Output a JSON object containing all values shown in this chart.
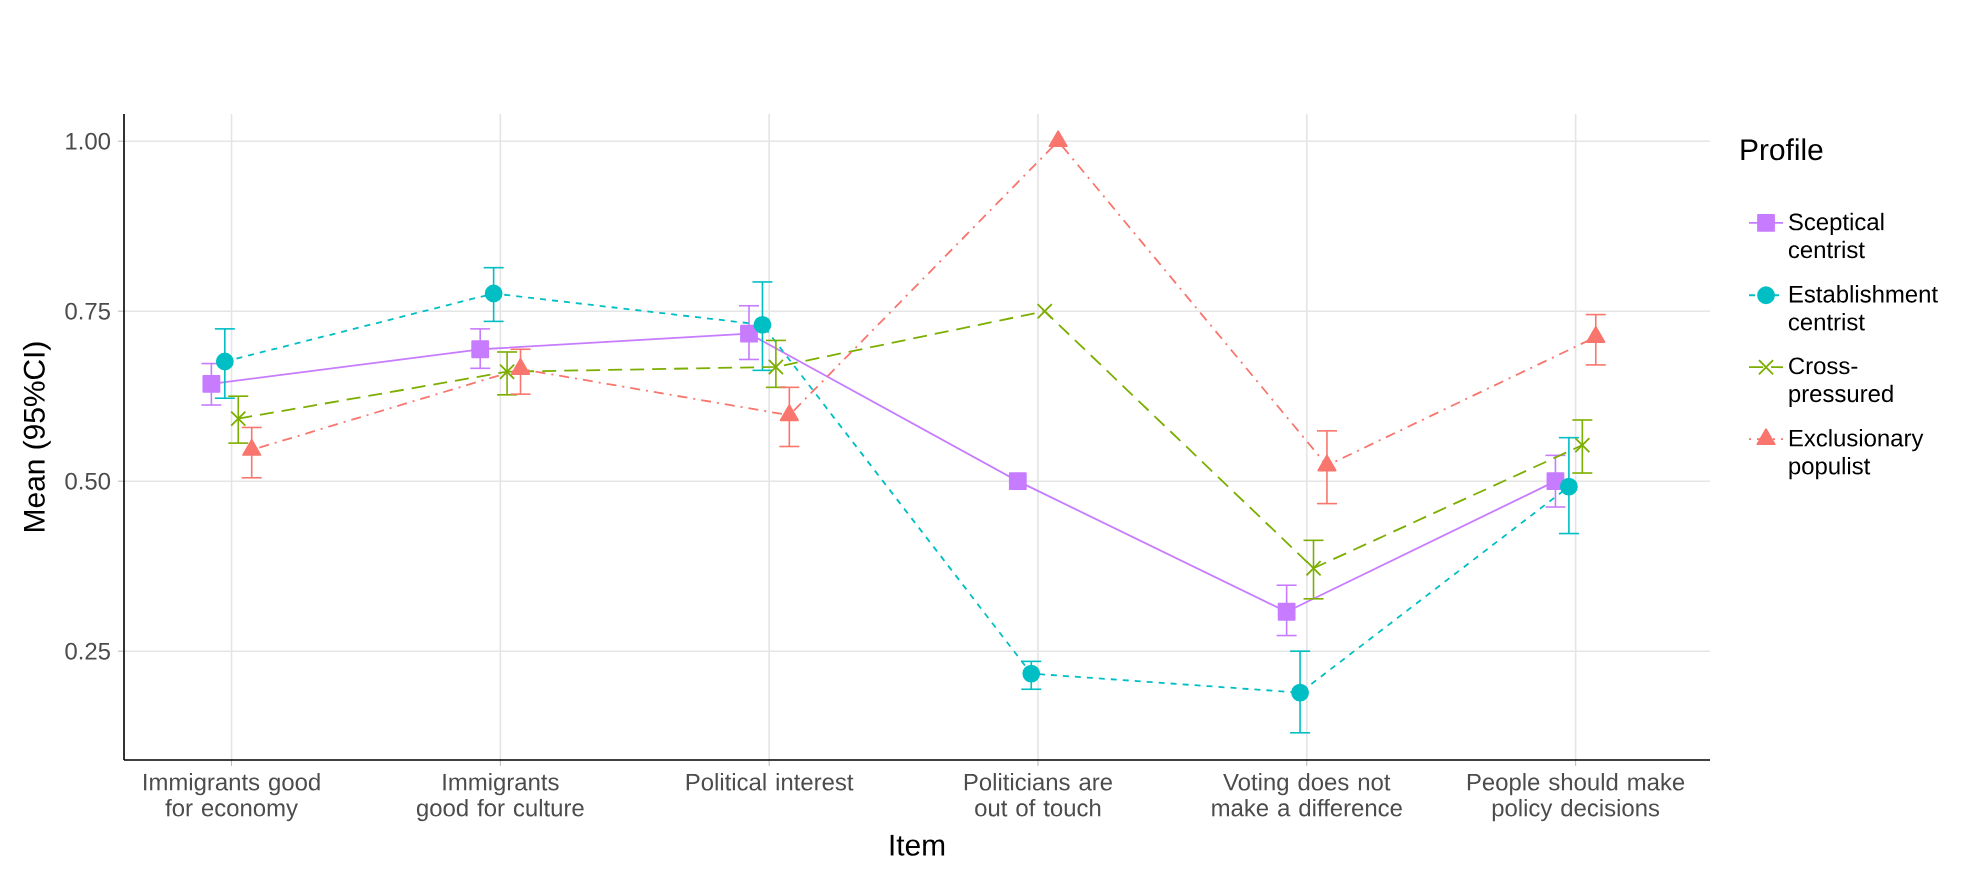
{
  "chart_data": {
    "type": "line",
    "xlabel": "Item",
    "ylabel": "Mean (95%CI)",
    "legend_title": "Profile",
    "legend": "right",
    "grid": true,
    "categories": [
      "Immigrants good for economy",
      "Immigrants good for culture",
      "Political interest",
      "Politicians are out of touch",
      "Voting does not make a difference",
      "People should make policy decisions"
    ],
    "ylim": [
      0.09,
      1.04
    ],
    "yticks": [
      {
        "value": 0.25,
        "label": "0.25"
      },
      {
        "value": 0.5,
        "label": "0.50"
      },
      {
        "value": 0.75,
        "label": "0.75"
      },
      {
        "value": 1.0,
        "label": "1.00"
      }
    ],
    "series": [
      {
        "name": "Sceptical centrist",
        "color": "#c77cff",
        "marker": "square",
        "line_style": "solid",
        "values": [
          0.643,
          0.694,
          0.717,
          0.5,
          0.308,
          0.5
        ],
        "errors": [
          [
            0.612,
            0.673
          ],
          [
            0.666,
            0.724
          ],
          [
            0.679,
            0.758
          ],
          null,
          [
            0.273,
            0.347
          ],
          [
            0.462,
            0.538
          ]
        ]
      },
      {
        "name": "Establishment centrist",
        "color": "#00bfc4",
        "marker": "circle",
        "line_style": "dashed",
        "values": [
          0.676,
          0.776,
          0.73,
          0.217,
          0.189,
          0.492
        ],
        "errors": [
          [
            0.622,
            0.724
          ],
          [
            0.735,
            0.814
          ],
          [
            0.663,
            0.793
          ],
          [
            0.194,
            0.235
          ],
          [
            0.13,
            0.25
          ],
          [
            0.423,
            0.564
          ]
        ]
      },
      {
        "name": "Cross-pressured",
        "color": "#7cae00",
        "marker": "cross",
        "line_style": "longdash",
        "values": [
          0.592,
          0.661,
          0.668,
          0.75,
          0.372,
          0.553
        ],
        "errors": [
          [
            0.556,
            0.625
          ],
          [
            0.627,
            0.69
          ],
          [
            0.638,
            0.707
          ],
          null,
          [
            0.327,
            0.413
          ],
          [
            0.512,
            0.59
          ]
        ]
      },
      {
        "name": "Exclusionary populist",
        "color": "#f8766d",
        "marker": "triangle",
        "line_style": "dotdash",
        "values": [
          0.546,
          0.665,
          0.597,
          1.0,
          0.523,
          0.712
        ],
        "errors": [
          [
            0.505,
            0.579
          ],
          [
            0.628,
            0.694
          ],
          [
            0.551,
            0.638
          ],
          null,
          [
            0.467,
            0.574
          ],
          [
            0.671,
            0.745
          ]
        ]
      }
    ]
  }
}
